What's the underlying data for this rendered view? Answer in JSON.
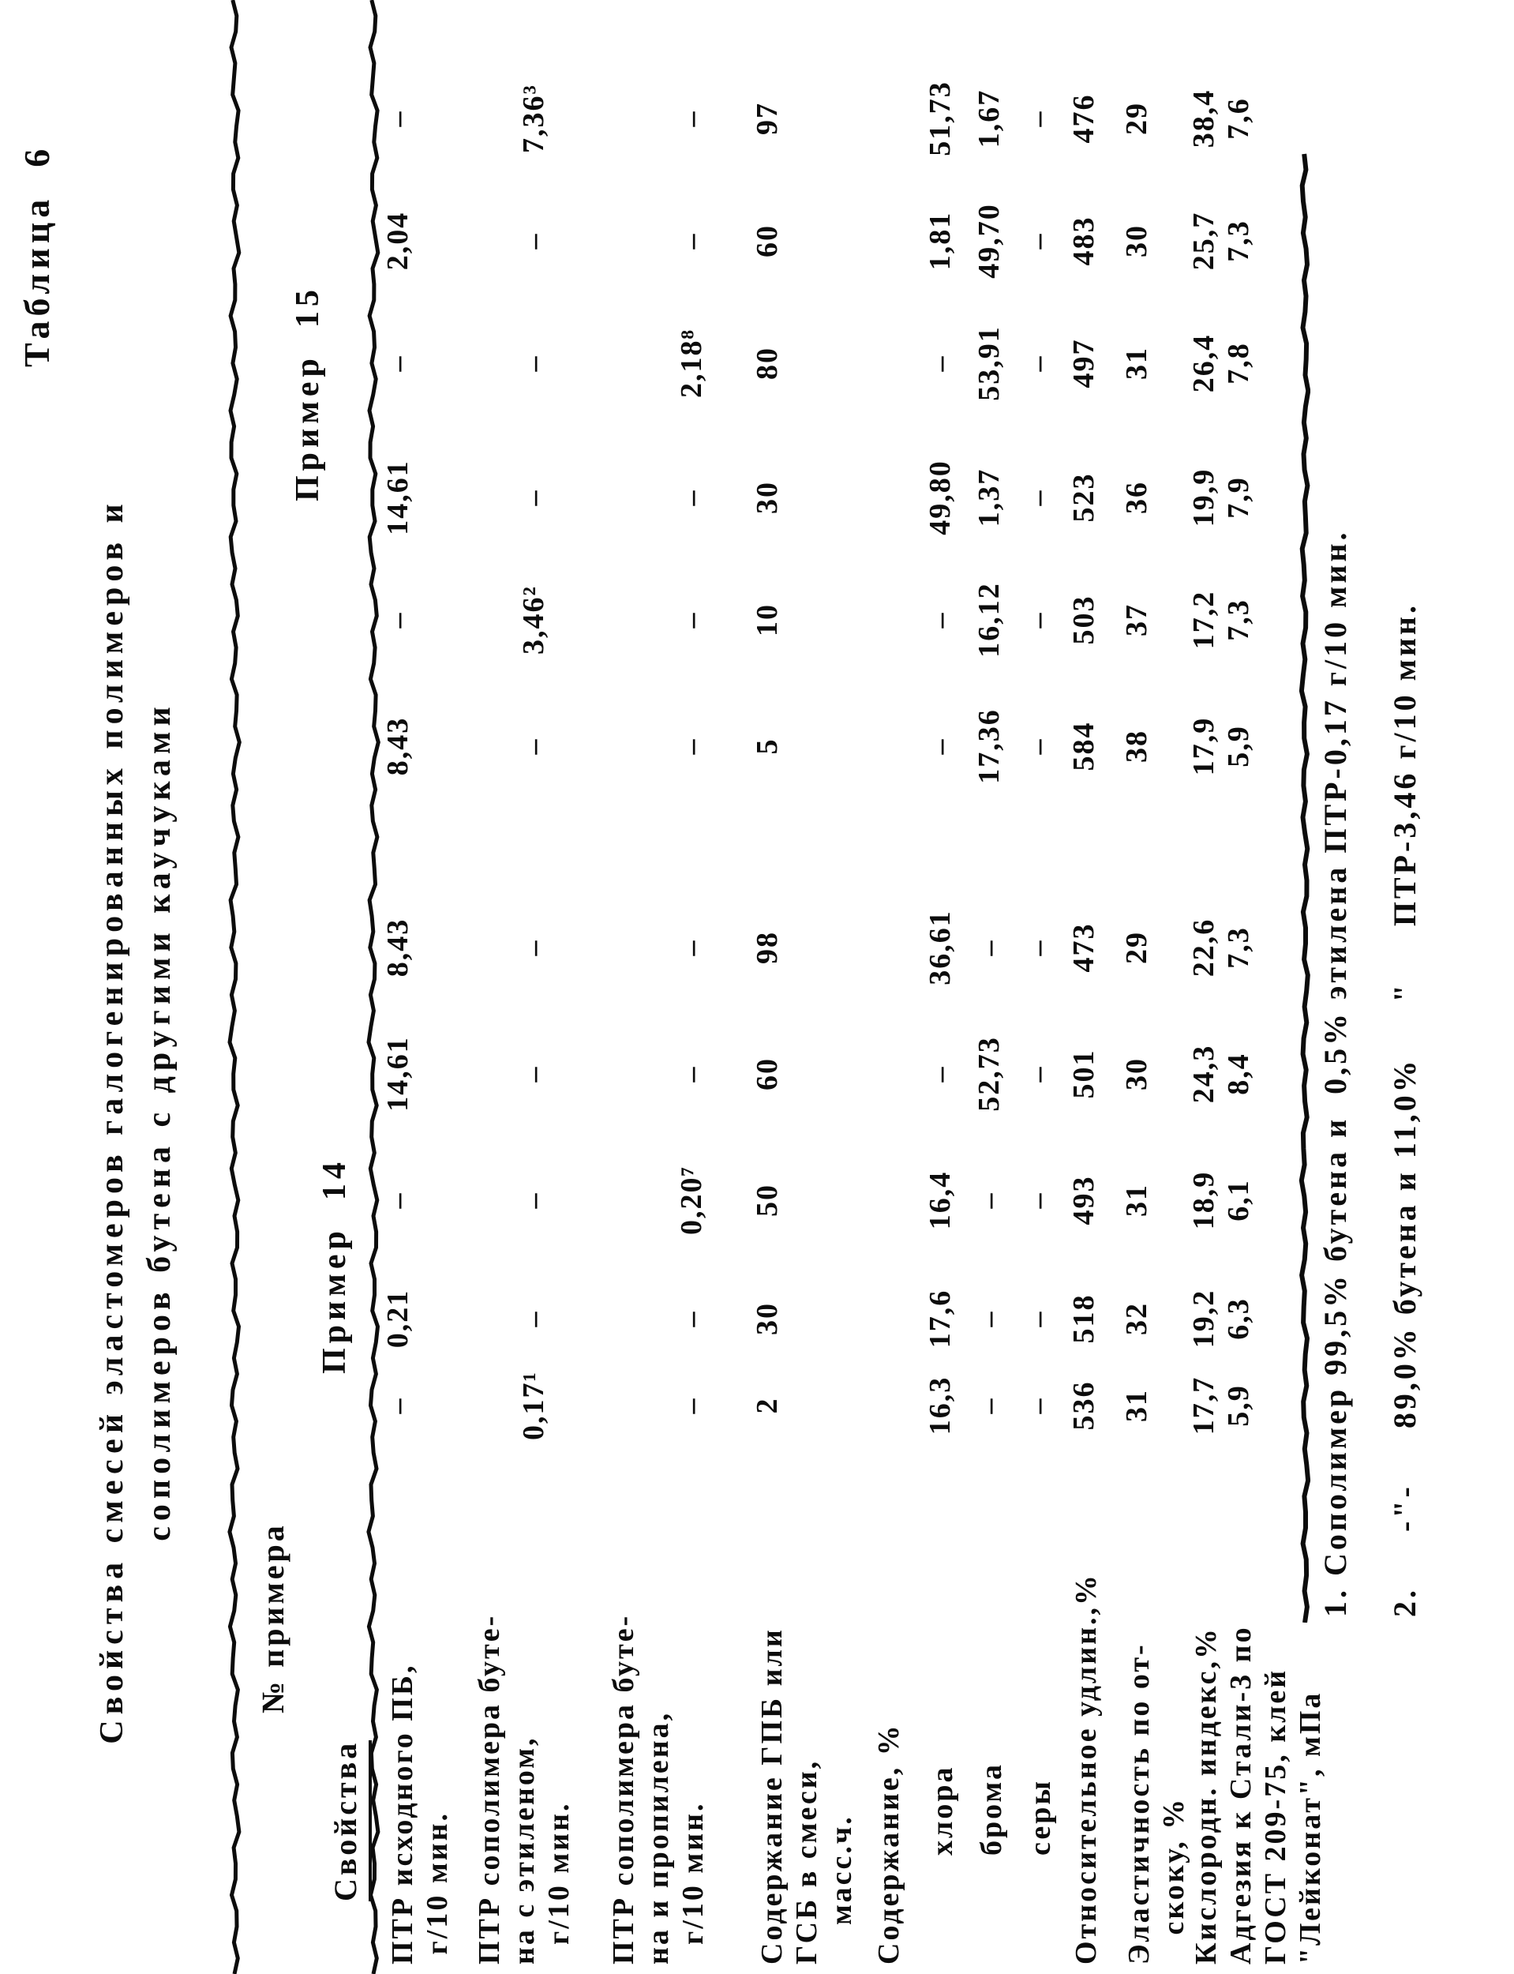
{
  "page": {
    "table_label": "Таблица  6",
    "title": [
      "Свойства смесей эластомеров галогенированных полимеров и",
      "сополимеров бутена с другими каучуками"
    ],
    "header": {
      "corner_top": "№ примера",
      "corner_bottom": "Свойства",
      "groups": [
        "Пример  14",
        "Пример  15"
      ]
    },
    "rows": [
      {
        "label": [
          "ПТР исходного ПБ,",
          " г/10 мин."
        ],
        "values": [
          "–",
          "0,21",
          "–",
          "14,61",
          "8,43",
          "8,43",
          "–",
          "14,61",
          "–",
          "2,04",
          "–"
        ]
      },
      {
        "label": [
          "ПТР сополимера буте-",
          "на с этиленом,",
          "  г/10 мин."
        ],
        "values": [
          "0,17¹",
          "–",
          "–",
          "–",
          "–",
          "–",
          "3,46²",
          "–",
          "–",
          "–",
          "7,36³"
        ]
      },
      {
        "label": [
          "ПТР сополимера буте-",
          "на и пропилена,",
          "  г/10 мин."
        ],
        "values": [
          "–",
          "–",
          "0,20⁷",
          "–",
          "–",
          "–",
          "–",
          "–",
          "2,18⁸",
          "–",
          "–"
        ]
      },
      {
        "label": [
          "Содержание ГПБ или",
          "ГСБ в смеси,",
          "    масс.ч."
        ],
        "values": [
          "2",
          "30",
          "50",
          "60",
          "98",
          "5",
          "10",
          "30",
          "80",
          "60",
          "97"
        ]
      },
      {
        "label": [
          "Содержание, %"
        ],
        "values": [
          "",
          "",
          "",
          "",
          "",
          "",
          "",
          "",
          "",
          "",
          ""
        ]
      },
      {
        "label": [
          "хлора"
        ],
        "indent": true,
        "values": [
          "16,3",
          "17,6",
          "16,4",
          "–",
          "36,61",
          "–",
          "–",
          "49,80",
          "–",
          "1,81",
          "51,73"
        ]
      },
      {
        "label": [
          "брома"
        ],
        "indent": true,
        "values": [
          "–",
          "–",
          "–",
          "52,73",
          "–",
          "17,36",
          "16,12",
          "1,37",
          "53,91",
          "49,70",
          "1,67"
        ]
      },
      {
        "label": [
          "серы"
        ],
        "indent": true,
        "values": [
          "–",
          "–",
          "–",
          "–",
          "–",
          "–",
          "–",
          "–",
          "–",
          "–",
          "–"
        ]
      },
      {
        "label": [
          "Относительное удлин.,%"
        ],
        "values": [
          "536",
          "518",
          "493",
          "501",
          "473",
          "584",
          "503",
          "523",
          "497",
          "483",
          "476"
        ]
      },
      {
        "label": [
          "Эластичность по от-",
          "   скоку, %"
        ],
        "values": [
          "31",
          "32",
          "31",
          "30",
          "29",
          "38",
          "37",
          "36",
          "31",
          "30",
          "29"
        ]
      },
      {
        "label": [
          "Кислородн. индекс,%"
        ],
        "values": [
          "17,7",
          "19,2",
          "18,9",
          "24,3",
          "22,6",
          "17,9",
          "17,2",
          "19,9",
          "26,4",
          "25,7",
          "38,4"
        ]
      },
      {
        "label": [
          "Адгезия к Стали-3 по",
          "ГОСТ 209-75, клей",
          "\"Лейконат\", мПа"
        ],
        "values": [
          "5,9",
          "6,3",
          "6,1",
          "8,4",
          "7,3",
          "5,9",
          "7,3",
          "7,9",
          "7,8",
          "7,3",
          "7,6"
        ]
      }
    ],
    "footnotes": [
      "1. Сополимер 99,5% бутена и  0,5% этилена ПТР-0,17 г/10 мин.",
      "2.     -\"-     89,0% бутена и 11,0%     \"     ПТР-3,46 г/10 мин."
    ]
  }
}
